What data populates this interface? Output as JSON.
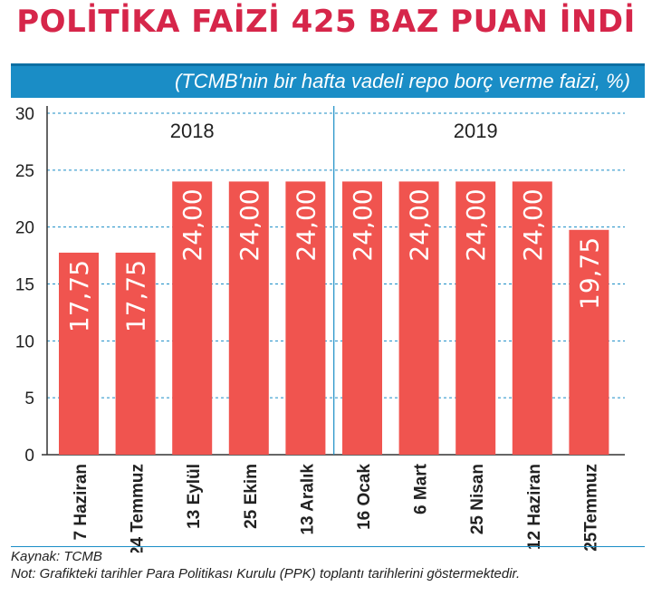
{
  "header": {
    "title": "POLİTİKA FAİZİ 425 BAZ PUAN İNDİ",
    "subtitle": "(TCMB'nin bir hafta vadeli repo borç verme faizi, %)"
  },
  "colors": {
    "bar": "#f0544f",
    "title": "#d6264a",
    "accent": "#1a8dc6",
    "grid": "#1a8dc6"
  },
  "chart_data": {
    "type": "bar",
    "title": "POLİTİKA FAİZİ 425 BAZ PUAN İNDİ",
    "subtitle": "(TCMB'nin bir hafta vadeli repo borç verme faizi, %)",
    "categories": [
      "7 Haziran",
      "24 Temmuz",
      "13 Eylül",
      "25 Ekim",
      "13 Aralık",
      "16 Ocak",
      "6 Mart",
      "25 Nisan",
      "12 Haziran",
      "25Temmuz"
    ],
    "values": [
      17.75,
      17.75,
      24.0,
      24.0,
      24.0,
      24.0,
      24.0,
      24.0,
      24.0,
      19.75
    ],
    "value_labels": [
      "17,75",
      "17,75",
      "24,00",
      "24,00",
      "24,00",
      "24,00",
      "24,00",
      "24,00",
      "24,00",
      "19,75"
    ],
    "groups": [
      {
        "label": "2018",
        "start": 0,
        "end": 4
      },
      {
        "label": "2019",
        "start": 5,
        "end": 9
      }
    ],
    "yticks": [
      "0",
      "5",
      "10",
      "15",
      "20",
      "25",
      "30"
    ],
    "ylim": [
      0,
      30
    ],
    "grid": true,
    "xlabel": "",
    "ylabel": ""
  },
  "footer": {
    "source": "Kaynak: TCMB",
    "note": "Not: Grafikteki tarihler Para Politikası Kurulu (PPK) toplantı tarihlerini göstermektedir."
  }
}
